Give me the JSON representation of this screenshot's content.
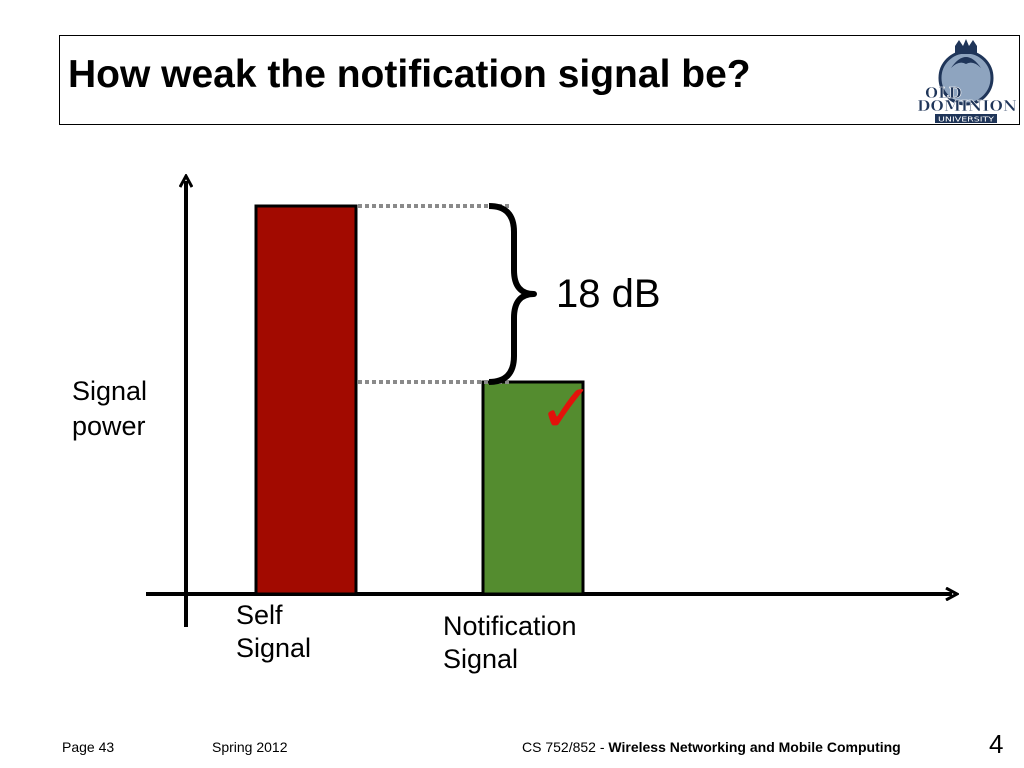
{
  "title": "How weak the notification signal be?",
  "logo": {
    "text_line1": "OLD",
    "text_line2": "DOMINION",
    "text_line3": "UNIVERSITY"
  },
  "chart_data": {
    "type": "bar",
    "ylabel_line1": "Signal",
    "ylabel_line2": "power",
    "series": [
      {
        "label_line1": "Self",
        "label_line2": "Signal",
        "value": 18,
        "color": "#a20a00"
      },
      {
        "label_line1": "Notification",
        "label_line2": "Signal",
        "value": 0,
        "color": "#548c2f"
      }
    ],
    "annotation": {
      "text": "18 dB",
      "mark": "✓",
      "mark_color": "#e3120b"
    }
  },
  "footer": {
    "page": "Page 43",
    "term": "Spring 2012",
    "course_prefix": "CS 752/852 - ",
    "course_name": "Wireless Networking and Mobile Computing",
    "slide_number": "4"
  }
}
